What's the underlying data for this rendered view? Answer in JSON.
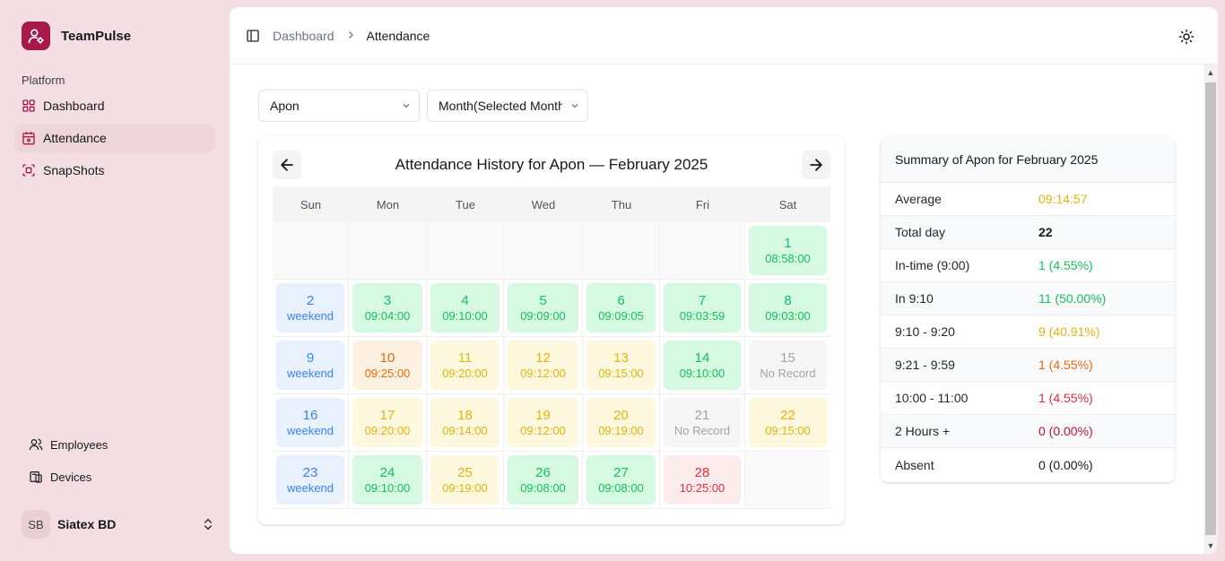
{
  "app": {
    "name": "TeamPulse"
  },
  "sidebar": {
    "group_label": "Platform",
    "items": [
      {
        "label": "Dashboard",
        "icon": "grid-icon"
      },
      {
        "label": "Attendance",
        "icon": "calendar-icon"
      },
      {
        "label": "SnapShots",
        "icon": "scan-icon"
      }
    ],
    "bottom_items": [
      {
        "label": "Employees",
        "icon": "users-icon"
      },
      {
        "label": "Devices",
        "icon": "devices-icon"
      }
    ],
    "user": {
      "initials": "SB",
      "name": "Siatex BD"
    }
  },
  "header": {
    "breadcrumb": [
      "Dashboard",
      "Attendance"
    ]
  },
  "filters": {
    "employee": "Apon",
    "period": "Month(Selected Month)"
  },
  "calendar": {
    "title": "Attendance History for Apon — February 2025",
    "weekdays": [
      "Sun",
      "Mon",
      "Tue",
      "Wed",
      "Thu",
      "Fri",
      "Sat"
    ],
    "weeks": [
      [
        {
          "empty": true
        },
        {
          "empty": true
        },
        {
          "empty": true
        },
        {
          "empty": true
        },
        {
          "empty": true
        },
        {
          "empty": true
        },
        {
          "day": "1",
          "time": "08:58:00",
          "status": "green"
        }
      ],
      [
        {
          "day": "2",
          "time": "weekend",
          "status": "weekend"
        },
        {
          "day": "3",
          "time": "09:04:00",
          "status": "green"
        },
        {
          "day": "4",
          "time": "09:10:00",
          "status": "green"
        },
        {
          "day": "5",
          "time": "09:09:00",
          "status": "green"
        },
        {
          "day": "6",
          "time": "09:09:05",
          "status": "green"
        },
        {
          "day": "7",
          "time": "09:03:59",
          "status": "green"
        },
        {
          "day": "8",
          "time": "09:03:00",
          "status": "green"
        }
      ],
      [
        {
          "day": "9",
          "time": "weekend",
          "status": "weekend"
        },
        {
          "day": "10",
          "time": "09:25:00",
          "status": "orange"
        },
        {
          "day": "11",
          "time": "09:20:00",
          "status": "yellow"
        },
        {
          "day": "12",
          "time": "09:12:00",
          "status": "yellow"
        },
        {
          "day": "13",
          "time": "09:15:00",
          "status": "yellow"
        },
        {
          "day": "14",
          "time": "09:10:00",
          "status": "green"
        },
        {
          "day": "15",
          "time": "No Record",
          "status": "gray"
        }
      ],
      [
        {
          "day": "16",
          "time": "weekend",
          "status": "weekend"
        },
        {
          "day": "17",
          "time": "09:20:00",
          "status": "yellow"
        },
        {
          "day": "18",
          "time": "09:14:00",
          "status": "yellow"
        },
        {
          "day": "19",
          "time": "09:12:00",
          "status": "yellow"
        },
        {
          "day": "20",
          "time": "09:19:00",
          "status": "yellow"
        },
        {
          "day": "21",
          "time": "No Record",
          "status": "gray"
        },
        {
          "day": "22",
          "time": "09:15:00",
          "status": "yellow"
        }
      ],
      [
        {
          "day": "23",
          "time": "weekend",
          "status": "weekend"
        },
        {
          "day": "24",
          "time": "09:10:00",
          "status": "green"
        },
        {
          "day": "25",
          "time": "09:19:00",
          "status": "yellow"
        },
        {
          "day": "26",
          "time": "09:08:00",
          "status": "green"
        },
        {
          "day": "27",
          "time": "09:08:00",
          "status": "green"
        },
        {
          "day": "28",
          "time": "10:25:00",
          "status": "red"
        },
        {
          "empty": true
        }
      ]
    ]
  },
  "summary": {
    "title": "Summary of Apon for February 2025",
    "rows": [
      {
        "label": "Average",
        "value": "09:14:57",
        "color": "#e5b30e"
      },
      {
        "label": "Total day",
        "value": "22",
        "color": "#18181b",
        "bold": true
      },
      {
        "label": "In-time (9:00)",
        "value": "1 (4.55%)",
        "color": "#16c05a"
      },
      {
        "label": "In 9:10",
        "value": "11 (50.00%)",
        "color": "#16c05a"
      },
      {
        "label": "9:10 - 9:20",
        "value": "9 (40.91%)",
        "color": "#e5b30e"
      },
      {
        "label": "9:21 - 9:59",
        "value": "1 (4.55%)",
        "color": "#ea6a0c"
      },
      {
        "label": "10:00 - 11:00",
        "value": "1 (4.55%)",
        "color": "#e12d3c"
      },
      {
        "label": "2 Hours +",
        "value": "0 (0.00%)",
        "color": "#be123c"
      },
      {
        "label": "Absent",
        "value": "0 (0.00%)",
        "color": "#18181b"
      }
    ]
  },
  "colors": {
    "brand": "#a6194a",
    "sidebar_bg": "#f3dfe3",
    "active_item_bg": "#ecd6da"
  }
}
